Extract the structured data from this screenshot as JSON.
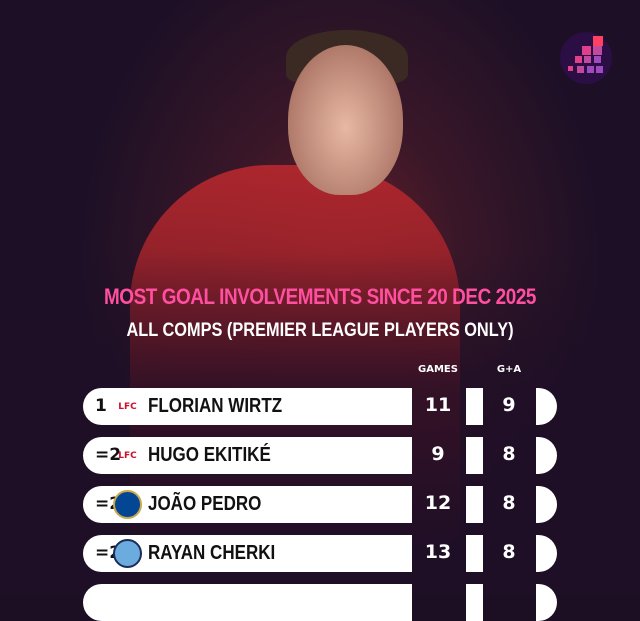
{
  "title": "MOST GOAL INVOLVEMENTS SINCE 20 DEC 2025",
  "subtitle": "ALL COMPS (PREMIER LEAGUE PLAYERS ONLY)",
  "columns": {
    "games": "GAMES",
    "ga": "G+A"
  },
  "colors": {
    "title": "#ff4fa0",
    "background": "#1c0f24",
    "row": "#ffffff"
  },
  "rows": [
    {
      "rank": "1",
      "club_icon": "liverpool-crest",
      "crest_text": "LFC",
      "name": "FLORIAN WIRTZ",
      "games": "11",
      "ga": "9"
    },
    {
      "rank": "=2",
      "club_icon": "liverpool-crest",
      "crest_text": "LFC",
      "name": "HUGO EKITIKÉ",
      "games": "9",
      "ga": "8"
    },
    {
      "rank": "=2",
      "club_icon": "chelsea-crest",
      "name": "JOÃO PEDRO",
      "games": "12",
      "ga": "8"
    },
    {
      "rank": "=2",
      "club_icon": "man-city-crest",
      "name": "RAYAN CHERKI",
      "games": "13",
      "ga": "8"
    }
  ]
}
